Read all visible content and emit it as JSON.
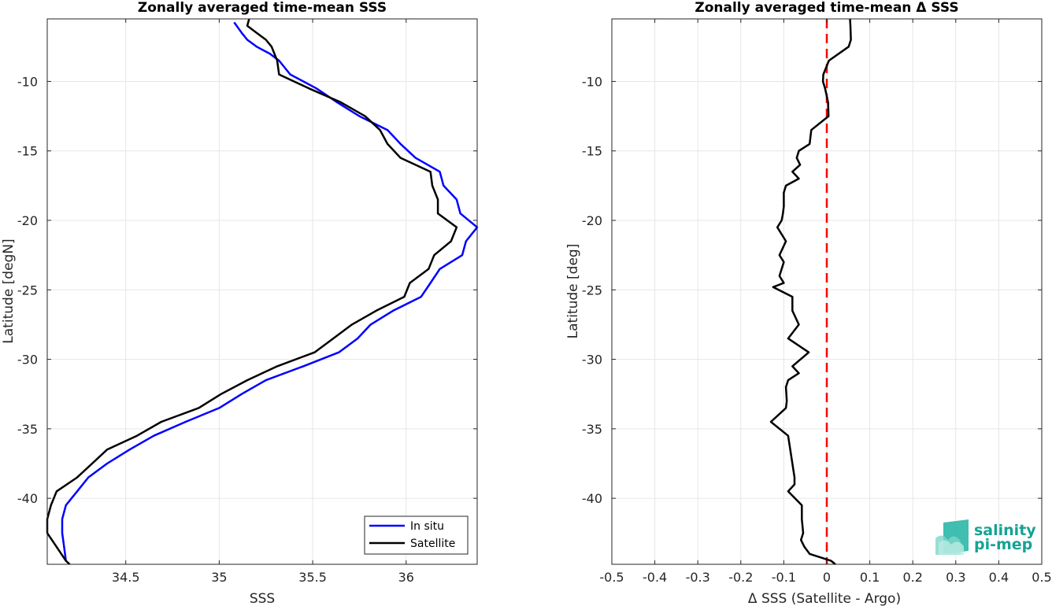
{
  "colors": {
    "insitu": "#0000ff",
    "satellite": "#000000",
    "zero_line": "#ff0000",
    "grid": "#e6e6e6",
    "logo": "#14a394"
  },
  "chart_data": [
    {
      "type": "line",
      "title": "Zonally averaged time-mean SSS",
      "xlabel": "SSS",
      "ylabel": "Latitude [degN]",
      "xlim": [
        34.08,
        36.38
      ],
      "ylim": [
        -44.75,
        -5.5
      ],
      "xticks": [
        34.5,
        35,
        35.5,
        36
      ],
      "xtick_labels": [
        "34.5",
        "35",
        "35.5",
        "36"
      ],
      "yticks": [
        -10,
        -15,
        -20,
        -25,
        -30,
        -35,
        -40
      ],
      "ytick_labels": [
        "-10",
        "-15",
        "-20",
        "-25",
        "-30",
        "-35",
        "-40"
      ],
      "grid": true,
      "legend_position": "bottom-right",
      "series": [
        {
          "name": "In situ",
          "color": "insitu",
          "points": [
            [
              35.08,
              -5.75
            ],
            [
              35.12,
              -6.5
            ],
            [
              35.15,
              -7.0
            ],
            [
              35.2,
              -7.5
            ],
            [
              35.27,
              -8.0
            ],
            [
              35.32,
              -8.5
            ],
            [
              35.38,
              -9.5
            ],
            [
              35.52,
              -10.5
            ],
            [
              35.63,
              -11.5
            ],
            [
              35.75,
              -12.5
            ],
            [
              35.9,
              -13.5
            ],
            [
              35.97,
              -14.5
            ],
            [
              36.05,
              -15.5
            ],
            [
              36.18,
              -16.5
            ],
            [
              36.2,
              -17.5
            ],
            [
              36.27,
              -18.5
            ],
            [
              36.29,
              -19.5
            ],
            [
              36.38,
              -20.5
            ],
            [
              36.32,
              -21.5
            ],
            [
              36.3,
              -22.5
            ],
            [
              36.18,
              -23.5
            ],
            [
              36.13,
              -24.5
            ],
            [
              36.08,
              -25.5
            ],
            [
              35.93,
              -26.5
            ],
            [
              35.81,
              -27.5
            ],
            [
              35.74,
              -28.5
            ],
            [
              35.64,
              -29.5
            ],
            [
              35.45,
              -30.5
            ],
            [
              35.25,
              -31.5
            ],
            [
              35.12,
              -32.5
            ],
            [
              35.0,
              -33.5
            ],
            [
              34.82,
              -34.5
            ],
            [
              34.65,
              -35.5
            ],
            [
              34.52,
              -36.5
            ],
            [
              34.4,
              -37.5
            ],
            [
              34.3,
              -38.5
            ],
            [
              34.24,
              -39.5
            ],
            [
              34.18,
              -40.5
            ],
            [
              34.16,
              -41.5
            ],
            [
              34.16,
              -42.5
            ],
            [
              34.17,
              -43.5
            ],
            [
              34.18,
              -44.5
            ]
          ]
        },
        {
          "name": "Satellite",
          "color": "satellite",
          "points": [
            [
              35.16,
              -5.5
            ],
            [
              35.15,
              -6.0
            ],
            [
              35.2,
              -6.5
            ],
            [
              35.25,
              -7.0
            ],
            [
              35.28,
              -7.5
            ],
            [
              35.31,
              -8.5
            ],
            [
              35.32,
              -9.5
            ],
            [
              35.48,
              -10.5
            ],
            [
              35.65,
              -11.5
            ],
            [
              35.78,
              -12.5
            ],
            [
              35.86,
              -13.5
            ],
            [
              35.9,
              -14.5
            ],
            [
              35.97,
              -15.5
            ],
            [
              36.13,
              -16.5
            ],
            [
              36.14,
              -17.5
            ],
            [
              36.17,
              -18.5
            ],
            [
              36.17,
              -19.5
            ],
            [
              36.27,
              -20.5
            ],
            [
              36.24,
              -21.5
            ],
            [
              36.15,
              -22.5
            ],
            [
              36.12,
              -23.5
            ],
            [
              36.02,
              -24.5
            ],
            [
              35.99,
              -25.5
            ],
            [
              35.84,
              -26.5
            ],
            [
              35.71,
              -27.5
            ],
            [
              35.61,
              -28.5
            ],
            [
              35.51,
              -29.5
            ],
            [
              35.31,
              -30.5
            ],
            [
              35.15,
              -31.5
            ],
            [
              35.01,
              -32.5
            ],
            [
              34.89,
              -33.5
            ],
            [
              34.69,
              -34.5
            ],
            [
              34.56,
              -35.5
            ],
            [
              34.4,
              -36.5
            ],
            [
              34.32,
              -37.5
            ],
            [
              34.24,
              -38.5
            ],
            [
              34.13,
              -39.5
            ],
            [
              34.1,
              -40.5
            ],
            [
              34.08,
              -41.5
            ],
            [
              34.08,
              -42.5
            ],
            [
              34.13,
              -43.5
            ],
            [
              34.18,
              -44.5
            ],
            [
              34.2,
              -44.75
            ]
          ]
        }
      ]
    },
    {
      "type": "line",
      "title": "Zonally averaged time-mean Δ SSS",
      "xlabel": "Δ SSS (Satellite - Argo)",
      "ylabel": "Latitude [deg]",
      "xlim": [
        -0.5,
        0.5
      ],
      "ylim": [
        -44.75,
        -5.5
      ],
      "xticks": [
        -0.5,
        -0.4,
        -0.3,
        -0.2,
        -0.1,
        0,
        0.1,
        0.2,
        0.3,
        0.4,
        0.5
      ],
      "xtick_labels": [
        "-0.5",
        "-0.4",
        "-0.3",
        "-0.2",
        "-0.1",
        "0",
        "0.1",
        "0.2",
        "0.3",
        "0.4",
        "0.5"
      ],
      "yticks": [
        -10,
        -15,
        -20,
        -25,
        -30,
        -35,
        -40
      ],
      "ytick_labels": [
        "-10",
        "-15",
        "-20",
        "-25",
        "-30",
        "-35",
        "-40"
      ],
      "grid": true,
      "reference_line_x": 0,
      "series": [
        {
          "color": "satellite",
          "points": [
            [
              0.054,
              -5.5
            ],
            [
              0.055,
              -6.0
            ],
            [
              0.056,
              -7.0
            ],
            [
              0.051,
              -7.5
            ],
            [
              0.005,
              -8.5
            ],
            [
              -0.008,
              -9.5
            ],
            [
              -0.009,
              -10.0
            ],
            [
              -0.004,
              -10.5
            ],
            [
              0.003,
              -11.5
            ],
            [
              0.004,
              -12.5
            ],
            [
              -0.036,
              -13.5
            ],
            [
              -0.04,
              -14.5
            ],
            [
              -0.065,
              -15.0
            ],
            [
              -0.07,
              -15.5
            ],
            [
              -0.062,
              -16.0
            ],
            [
              -0.08,
              -16.5
            ],
            [
              -0.065,
              -17.0
            ],
            [
              -0.095,
              -17.5
            ],
            [
              -0.1,
              -18.0
            ],
            [
              -0.1,
              -19.0
            ],
            [
              -0.102,
              -19.5
            ],
            [
              -0.105,
              -20.0
            ],
            [
              -0.115,
              -20.5
            ],
            [
              -0.095,
              -21.5
            ],
            [
              -0.11,
              -22.5
            ],
            [
              -0.1,
              -23.0
            ],
            [
              -0.11,
              -24.0
            ],
            [
              -0.1,
              -24.5
            ],
            [
              -0.125,
              -24.8
            ],
            [
              -0.08,
              -25.5
            ],
            [
              -0.08,
              -26.5
            ],
            [
              -0.065,
              -27.5
            ],
            [
              -0.09,
              -28.5
            ],
            [
              -0.042,
              -29.5
            ],
            [
              -0.08,
              -30.5
            ],
            [
              -0.065,
              -31.0
            ],
            [
              -0.09,
              -31.5
            ],
            [
              -0.095,
              -32.0
            ],
            [
              -0.093,
              -33.0
            ],
            [
              -0.095,
              -33.5
            ],
            [
              -0.13,
              -34.5
            ],
            [
              -0.09,
              -35.5
            ],
            [
              -0.08,
              -37.5
            ],
            [
              -0.075,
              -38.5
            ],
            [
              -0.075,
              -39.0
            ],
            [
              -0.09,
              -39.5
            ],
            [
              -0.058,
              -40.5
            ],
            [
              -0.058,
              -41.5
            ],
            [
              -0.055,
              -42.5
            ],
            [
              -0.06,
              -43.0
            ],
            [
              -0.052,
              -43.5
            ],
            [
              -0.04,
              -44.0
            ],
            [
              0.01,
              -44.5
            ],
            [
              0.02,
              -44.75
            ]
          ]
        }
      ]
    }
  ]
}
